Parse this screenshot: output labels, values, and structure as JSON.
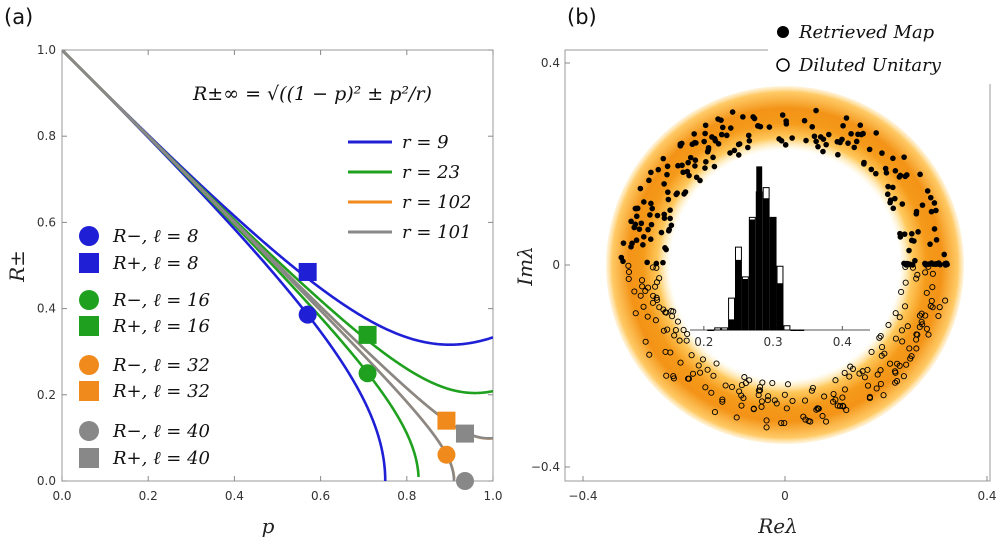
{
  "chart_data": [
    {
      "type": "line",
      "panel_label": "(a)",
      "xlabel": "p",
      "ylabel": "R±",
      "xlim": [
        0,
        1
      ],
      "ylim": [
        0,
        1
      ],
      "xticks": [
        "0.0",
        "0.2",
        "0.4",
        "0.6",
        "0.8",
        "1.0"
      ],
      "yticks": [
        "0.0",
        "0.2",
        "0.4",
        "0.6",
        "0.8",
        "1.0"
      ],
      "annotation": "R±∞ = √((1 − p)² ± p²/r)",
      "series": [
        {
          "name": "r = 9",
          "r": 9,
          "color": "#1f1fd6"
        },
        {
          "name": "r = 23",
          "r": 23,
          "color": "#1fa11f"
        },
        {
          "name": "r = 102",
          "r": 102,
          "color": "#f08a1c"
        },
        {
          "name": "r = 101",
          "r": 101,
          "color": "#888888"
        }
      ],
      "markers": [
        {
          "label": "R−, ℓ = 8",
          "shape": "circle",
          "color": "#1f1fd6",
          "p": 0.57,
          "R": 0.386
        },
        {
          "label": "R+, ℓ = 8",
          "shape": "square",
          "color": "#1f1fd6",
          "p": 0.57,
          "R": 0.485
        },
        {
          "label": "R−, ℓ = 16",
          "shape": "circle",
          "color": "#1fa11f",
          "p": 0.709,
          "R": 0.25
        },
        {
          "label": "R+, ℓ = 16",
          "shape": "square",
          "color": "#1fa11f",
          "p": 0.709,
          "R": 0.339
        },
        {
          "label": "R−, ℓ = 32",
          "shape": "circle",
          "color": "#f08a1c",
          "p": 0.892,
          "R": 0.061
        },
        {
          "label": "R+, ℓ = 32",
          "shape": "square",
          "color": "#f08a1c",
          "p": 0.892,
          "R": 0.14
        },
        {
          "label": "R−, ℓ = 40",
          "shape": "circle",
          "color": "#888888",
          "p": 0.935,
          "R": 0.0
        },
        {
          "label": "R+, ℓ = 40",
          "shape": "square",
          "color": "#888888",
          "p": 0.935,
          "R": 0.11
        }
      ]
    },
    {
      "type": "scatter",
      "panel_label": "(b)",
      "xlabel": "Reλ",
      "ylabel": "Imλ",
      "xlim": [
        -0.4,
        0.4
      ],
      "ylim": [
        -0.4,
        0.4
      ],
      "xticks": [
        "−0.4",
        "0",
        "0.4"
      ],
      "yticks": [
        "−0.4",
        "0",
        "0.4"
      ],
      "legend": [
        {
          "label": "Retrieved Map",
          "marker": "filled-circle"
        },
        {
          "label": "Diluted Unitary",
          "marker": "open-circle"
        }
      ],
      "ring": {
        "center": [
          0,
          0
        ],
        "inner_radius": 0.235,
        "outer_radius": 0.325
      },
      "inset_histogram": {
        "xticks": [
          "0.2",
          "0.3",
          "0.4"
        ],
        "bins": [
          0.21,
          0.22,
          0.23,
          0.24,
          0.25,
          0.26,
          0.27,
          0.28,
          0.29,
          0.3,
          0.31,
          0.32,
          0.33,
          0.34
        ],
        "retrieved_map": [
          0,
          0,
          0,
          0.05,
          0.33,
          0.24,
          0.52,
          0.77,
          0.62,
          0.53,
          0.22,
          0,
          0,
          0
        ],
        "diluted_unitary": [
          0,
          0.01,
          0.01,
          0.15,
          0.39,
          0.25,
          0.53,
          0.65,
          0.67,
          0.53,
          0.3,
          0.02,
          0,
          0
        ]
      }
    }
  ]
}
